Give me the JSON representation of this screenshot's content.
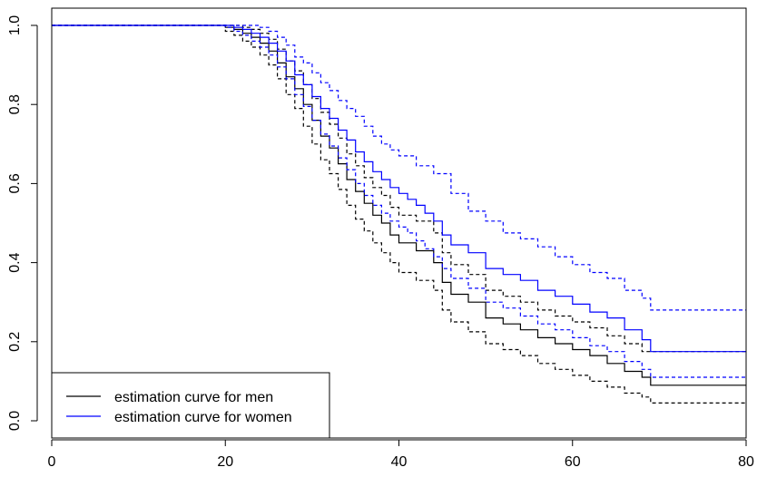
{
  "chart_data": {
    "type": "line",
    "step": true,
    "title": "",
    "xlabel": "",
    "ylabel": "",
    "xlim": [
      0,
      80
    ],
    "ylim": [
      0,
      1
    ],
    "x_ticks": [
      "0",
      "20",
      "40",
      "60",
      "80"
    ],
    "y_ticks": [
      "0.0",
      "0.2",
      "0.4",
      "0.6",
      "0.8",
      "1.0"
    ],
    "grid": false,
    "legend": {
      "placement": "bottom-left",
      "entries": [
        {
          "label": "estimation curve for men",
          "color": "#000000"
        },
        {
          "label": "estimation curve for women",
          "color": "#0000ff"
        }
      ]
    },
    "series": [
      {
        "name": "estimation curve for men",
        "color": "#000000",
        "style": "solid",
        "x": [
          0,
          20,
          21,
          22,
          23,
          24,
          25,
          26,
          27,
          28,
          29,
          30,
          31,
          32,
          33,
          34,
          35,
          36,
          37,
          38,
          39,
          40,
          42,
          44,
          45,
          46,
          48,
          50,
          52,
          54,
          56,
          58,
          60,
          62,
          64,
          66,
          68,
          69,
          80
        ],
        "y": [
          1.0,
          0.995,
          0.99,
          0.98,
          0.97,
          0.955,
          0.935,
          0.905,
          0.87,
          0.84,
          0.8,
          0.76,
          0.72,
          0.69,
          0.65,
          0.61,
          0.58,
          0.55,
          0.52,
          0.5,
          0.47,
          0.45,
          0.43,
          0.4,
          0.35,
          0.32,
          0.3,
          0.26,
          0.245,
          0.23,
          0.21,
          0.195,
          0.18,
          0.165,
          0.145,
          0.125,
          0.11,
          0.09,
          0.09
        ]
      },
      {
        "name": "",
        "color": "#000000",
        "style": "dashed",
        "x": [
          0,
          20,
          21,
          22,
          23,
          24,
          25,
          26,
          27,
          28,
          29,
          30,
          31,
          32,
          33,
          34,
          35,
          36,
          37,
          38,
          39,
          40,
          42,
          44,
          45,
          46,
          48,
          50,
          52,
          54,
          56,
          58,
          60,
          62,
          64,
          66,
          68,
          69,
          80
        ],
        "y": [
          1.0,
          0.985,
          0.975,
          0.96,
          0.945,
          0.925,
          0.9,
          0.865,
          0.825,
          0.79,
          0.745,
          0.7,
          0.66,
          0.625,
          0.585,
          0.545,
          0.51,
          0.48,
          0.45,
          0.425,
          0.4,
          0.375,
          0.355,
          0.33,
          0.28,
          0.25,
          0.225,
          0.195,
          0.18,
          0.165,
          0.145,
          0.13,
          0.115,
          0.1,
          0.085,
          0.07,
          0.06,
          0.045,
          0.045
        ]
      },
      {
        "name": "",
        "color": "#000000",
        "style": "dashed",
        "x": [
          0,
          20,
          21,
          22,
          23,
          24,
          25,
          26,
          27,
          28,
          29,
          30,
          31,
          32,
          33,
          34,
          35,
          36,
          37,
          38,
          39,
          40,
          42,
          44,
          45,
          46,
          48,
          50,
          52,
          54,
          56,
          58,
          60,
          62,
          64,
          66,
          68,
          69,
          80
        ],
        "y": [
          1.0,
          1.0,
          1.0,
          0.995,
          0.99,
          0.98,
          0.965,
          0.94,
          0.91,
          0.885,
          0.85,
          0.815,
          0.78,
          0.75,
          0.715,
          0.675,
          0.645,
          0.615,
          0.59,
          0.57,
          0.54,
          0.52,
          0.505,
          0.475,
          0.425,
          0.395,
          0.37,
          0.33,
          0.315,
          0.3,
          0.28,
          0.265,
          0.25,
          0.235,
          0.215,
          0.195,
          0.175,
          0.175,
          0.175
        ]
      },
      {
        "name": "estimation curve for women",
        "color": "#0000ff",
        "style": "solid",
        "x": [
          0,
          20,
          21,
          22,
          23,
          24,
          25,
          26,
          27,
          28,
          29,
          30,
          31,
          32,
          33,
          34,
          35,
          36,
          37,
          38,
          39,
          40,
          41,
          42,
          43,
          44,
          45,
          46,
          48,
          50,
          52,
          54,
          56,
          58,
          60,
          62,
          64,
          66,
          68,
          69,
          80
        ],
        "y": [
          1.0,
          1.0,
          0.995,
          0.99,
          0.98,
          0.97,
          0.955,
          0.935,
          0.91,
          0.875,
          0.85,
          0.82,
          0.79,
          0.765,
          0.735,
          0.71,
          0.68,
          0.655,
          0.63,
          0.61,
          0.59,
          0.575,
          0.56,
          0.545,
          0.525,
          0.505,
          0.47,
          0.445,
          0.425,
          0.385,
          0.37,
          0.355,
          0.33,
          0.315,
          0.295,
          0.275,
          0.26,
          0.23,
          0.205,
          0.175,
          0.175
        ]
      },
      {
        "name": "",
        "color": "#0000ff",
        "style": "dashed",
        "x": [
          0,
          20,
          21,
          22,
          23,
          24,
          25,
          26,
          27,
          28,
          29,
          30,
          31,
          32,
          33,
          34,
          35,
          36,
          37,
          38,
          39,
          40,
          41,
          42,
          43,
          44,
          45,
          46,
          48,
          50,
          52,
          54,
          56,
          58,
          60,
          62,
          64,
          66,
          68,
          69,
          80
        ],
        "y": [
          1.0,
          0.995,
          0.985,
          0.975,
          0.96,
          0.945,
          0.925,
          0.895,
          0.865,
          0.825,
          0.795,
          0.76,
          0.725,
          0.695,
          0.665,
          0.635,
          0.6,
          0.57,
          0.545,
          0.525,
          0.505,
          0.49,
          0.475,
          0.455,
          0.435,
          0.415,
          0.385,
          0.36,
          0.335,
          0.3,
          0.285,
          0.265,
          0.245,
          0.23,
          0.21,
          0.19,
          0.175,
          0.15,
          0.13,
          0.11,
          0.11
        ]
      },
      {
        "name": "",
        "color": "#0000ff",
        "style": "dashed",
        "x": [
          0,
          20,
          21,
          22,
          23,
          24,
          25,
          26,
          27,
          28,
          29,
          30,
          31,
          32,
          33,
          34,
          35,
          36,
          37,
          38,
          39,
          40,
          42,
          44,
          46,
          48,
          50,
          52,
          54,
          56,
          58,
          60,
          62,
          64,
          66,
          68,
          69,
          80
        ],
        "y": [
          1.0,
          1.0,
          1.0,
          1.0,
          1.0,
          0.995,
          0.985,
          0.97,
          0.95,
          0.92,
          0.905,
          0.88,
          0.855,
          0.835,
          0.81,
          0.79,
          0.77,
          0.745,
          0.72,
          0.7,
          0.685,
          0.67,
          0.645,
          0.625,
          0.575,
          0.53,
          0.505,
          0.475,
          0.46,
          0.44,
          0.415,
          0.395,
          0.375,
          0.36,
          0.33,
          0.31,
          0.28,
          0.28
        ]
      }
    ]
  }
}
